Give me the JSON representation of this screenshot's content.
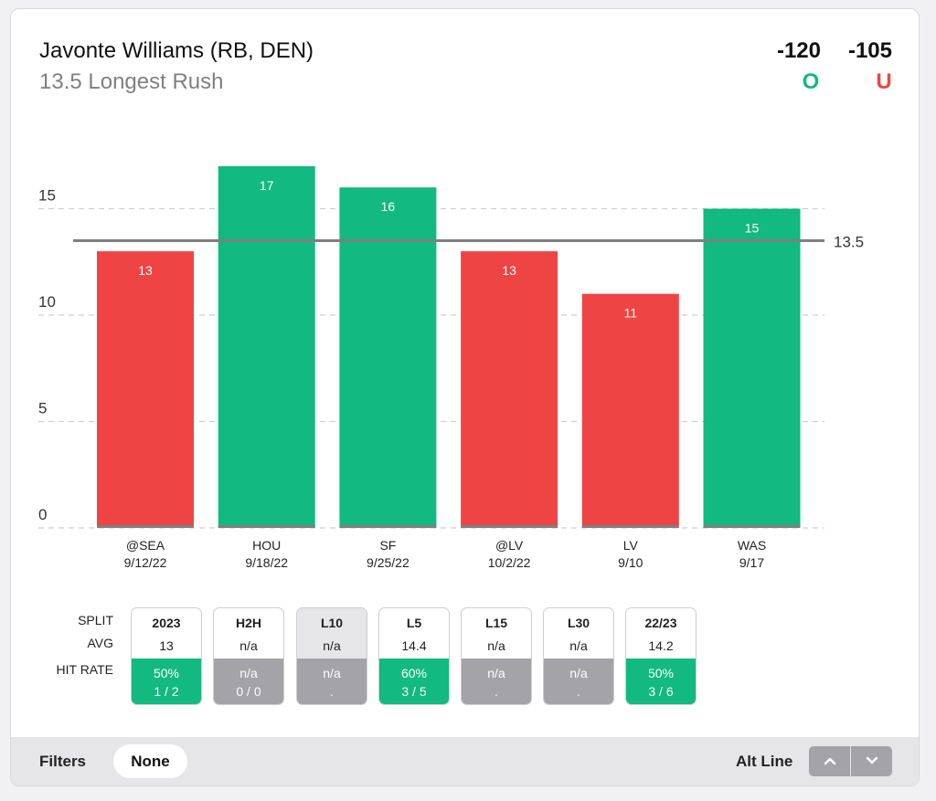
{
  "header": {
    "player": "Javonte Williams (RB, DEN)",
    "prop": "13.5 Longest Rush",
    "odds_over": "-120",
    "odds_under": "-105",
    "over_label": "O",
    "under_label": "U"
  },
  "colors": {
    "over_green": "#12b981",
    "under_red": "#ef4444",
    "gray_na": "#a3a3a8",
    "line_gray": "#7f7f7f"
  },
  "chart_data": {
    "type": "bar",
    "categories": [
      "@SEA",
      "HOU",
      "SF",
      "@LV",
      "LV",
      "WAS"
    ],
    "dates": [
      "9/12/22",
      "9/18/22",
      "9/25/22",
      "10/2/22",
      "9/10",
      "9/17"
    ],
    "values": [
      13,
      17,
      16,
      13,
      11,
      15
    ],
    "line": 13.5,
    "line_label": "13.5",
    "yticks": [
      0,
      5,
      10,
      15
    ],
    "ylim": [
      0,
      19
    ],
    "grid": true
  },
  "splits": {
    "row_labels": {
      "split": "SPLIT",
      "avg": "AVG",
      "hit_rate": "HIT RATE"
    },
    "items": [
      {
        "name": "2023",
        "avg": "13",
        "hit_pct": "50%",
        "hit_frac": "1 / 2",
        "status": "green",
        "active": false
      },
      {
        "name": "H2H",
        "avg": "n/a",
        "hit_pct": "n/a",
        "hit_frac": "0 / 0",
        "status": "gray",
        "active": false
      },
      {
        "name": "L10",
        "avg": "n/a",
        "hit_pct": "n/a",
        "hit_frac": ".",
        "status": "gray",
        "active": true
      },
      {
        "name": "L5",
        "avg": "14.4",
        "hit_pct": "60%",
        "hit_frac": "3 / 5",
        "status": "green",
        "active": false
      },
      {
        "name": "L15",
        "avg": "n/a",
        "hit_pct": "n/a",
        "hit_frac": ".",
        "status": "gray",
        "active": false
      },
      {
        "name": "L30",
        "avg": "n/a",
        "hit_pct": "n/a",
        "hit_frac": ".",
        "status": "gray",
        "active": false
      },
      {
        "name": "22/23",
        "avg": "14.2",
        "hit_pct": "50%",
        "hit_frac": "3 / 6",
        "status": "green",
        "active": false
      }
    ]
  },
  "footer": {
    "filters_label": "Filters",
    "filter_value": "None",
    "alt_line_label": "Alt Line",
    "alt_up_icon": "chevron-up-icon",
    "alt_down_icon": "chevron-down-icon"
  }
}
